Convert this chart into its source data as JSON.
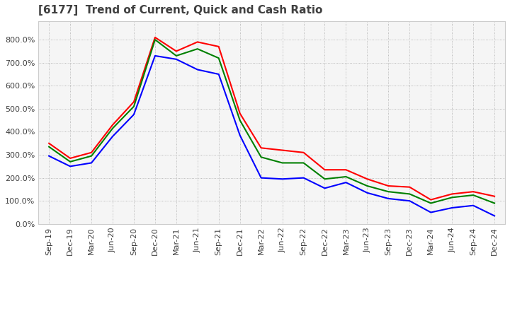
{
  "title": "[6177]  Trend of Current, Quick and Cash Ratio",
  "x_labels": [
    "Sep-19",
    "Dec-19",
    "Mar-20",
    "Jun-20",
    "Sep-20",
    "Dec-20",
    "Mar-21",
    "Jun-21",
    "Sep-21",
    "Dec-21",
    "Mar-22",
    "Jun-22",
    "Sep-22",
    "Dec-22",
    "Mar-23",
    "Jun-23",
    "Sep-23",
    "Dec-23",
    "Mar-24",
    "Jun-24",
    "Sep-24",
    "Dec-24"
  ],
  "current_ratio": [
    350,
    285,
    310,
    430,
    530,
    810,
    750,
    790,
    770,
    480,
    330,
    320,
    310,
    235,
    235,
    195,
    165,
    160,
    105,
    130,
    140,
    120
  ],
  "quick_ratio": [
    335,
    270,
    295,
    415,
    510,
    800,
    730,
    760,
    720,
    450,
    290,
    265,
    265,
    195,
    205,
    165,
    140,
    130,
    90,
    115,
    125,
    90
  ],
  "cash_ratio": [
    295,
    250,
    265,
    380,
    475,
    730,
    715,
    670,
    650,
    385,
    200,
    195,
    200,
    155,
    180,
    135,
    110,
    100,
    50,
    70,
    80,
    35
  ],
  "current_color": "#ff0000",
  "quick_color": "#008000",
  "cash_color": "#0000ff",
  "ylim": [
    0,
    880
  ],
  "yticks": [
    0,
    100,
    200,
    300,
    400,
    500,
    600,
    700,
    800
  ],
  "background_color": "#ffffff",
  "plot_bg_color": "#f5f5f5",
  "grid_color": "#aaaaaa",
  "title_color": "#404040",
  "title_fontsize": 11,
  "tick_fontsize": 8
}
